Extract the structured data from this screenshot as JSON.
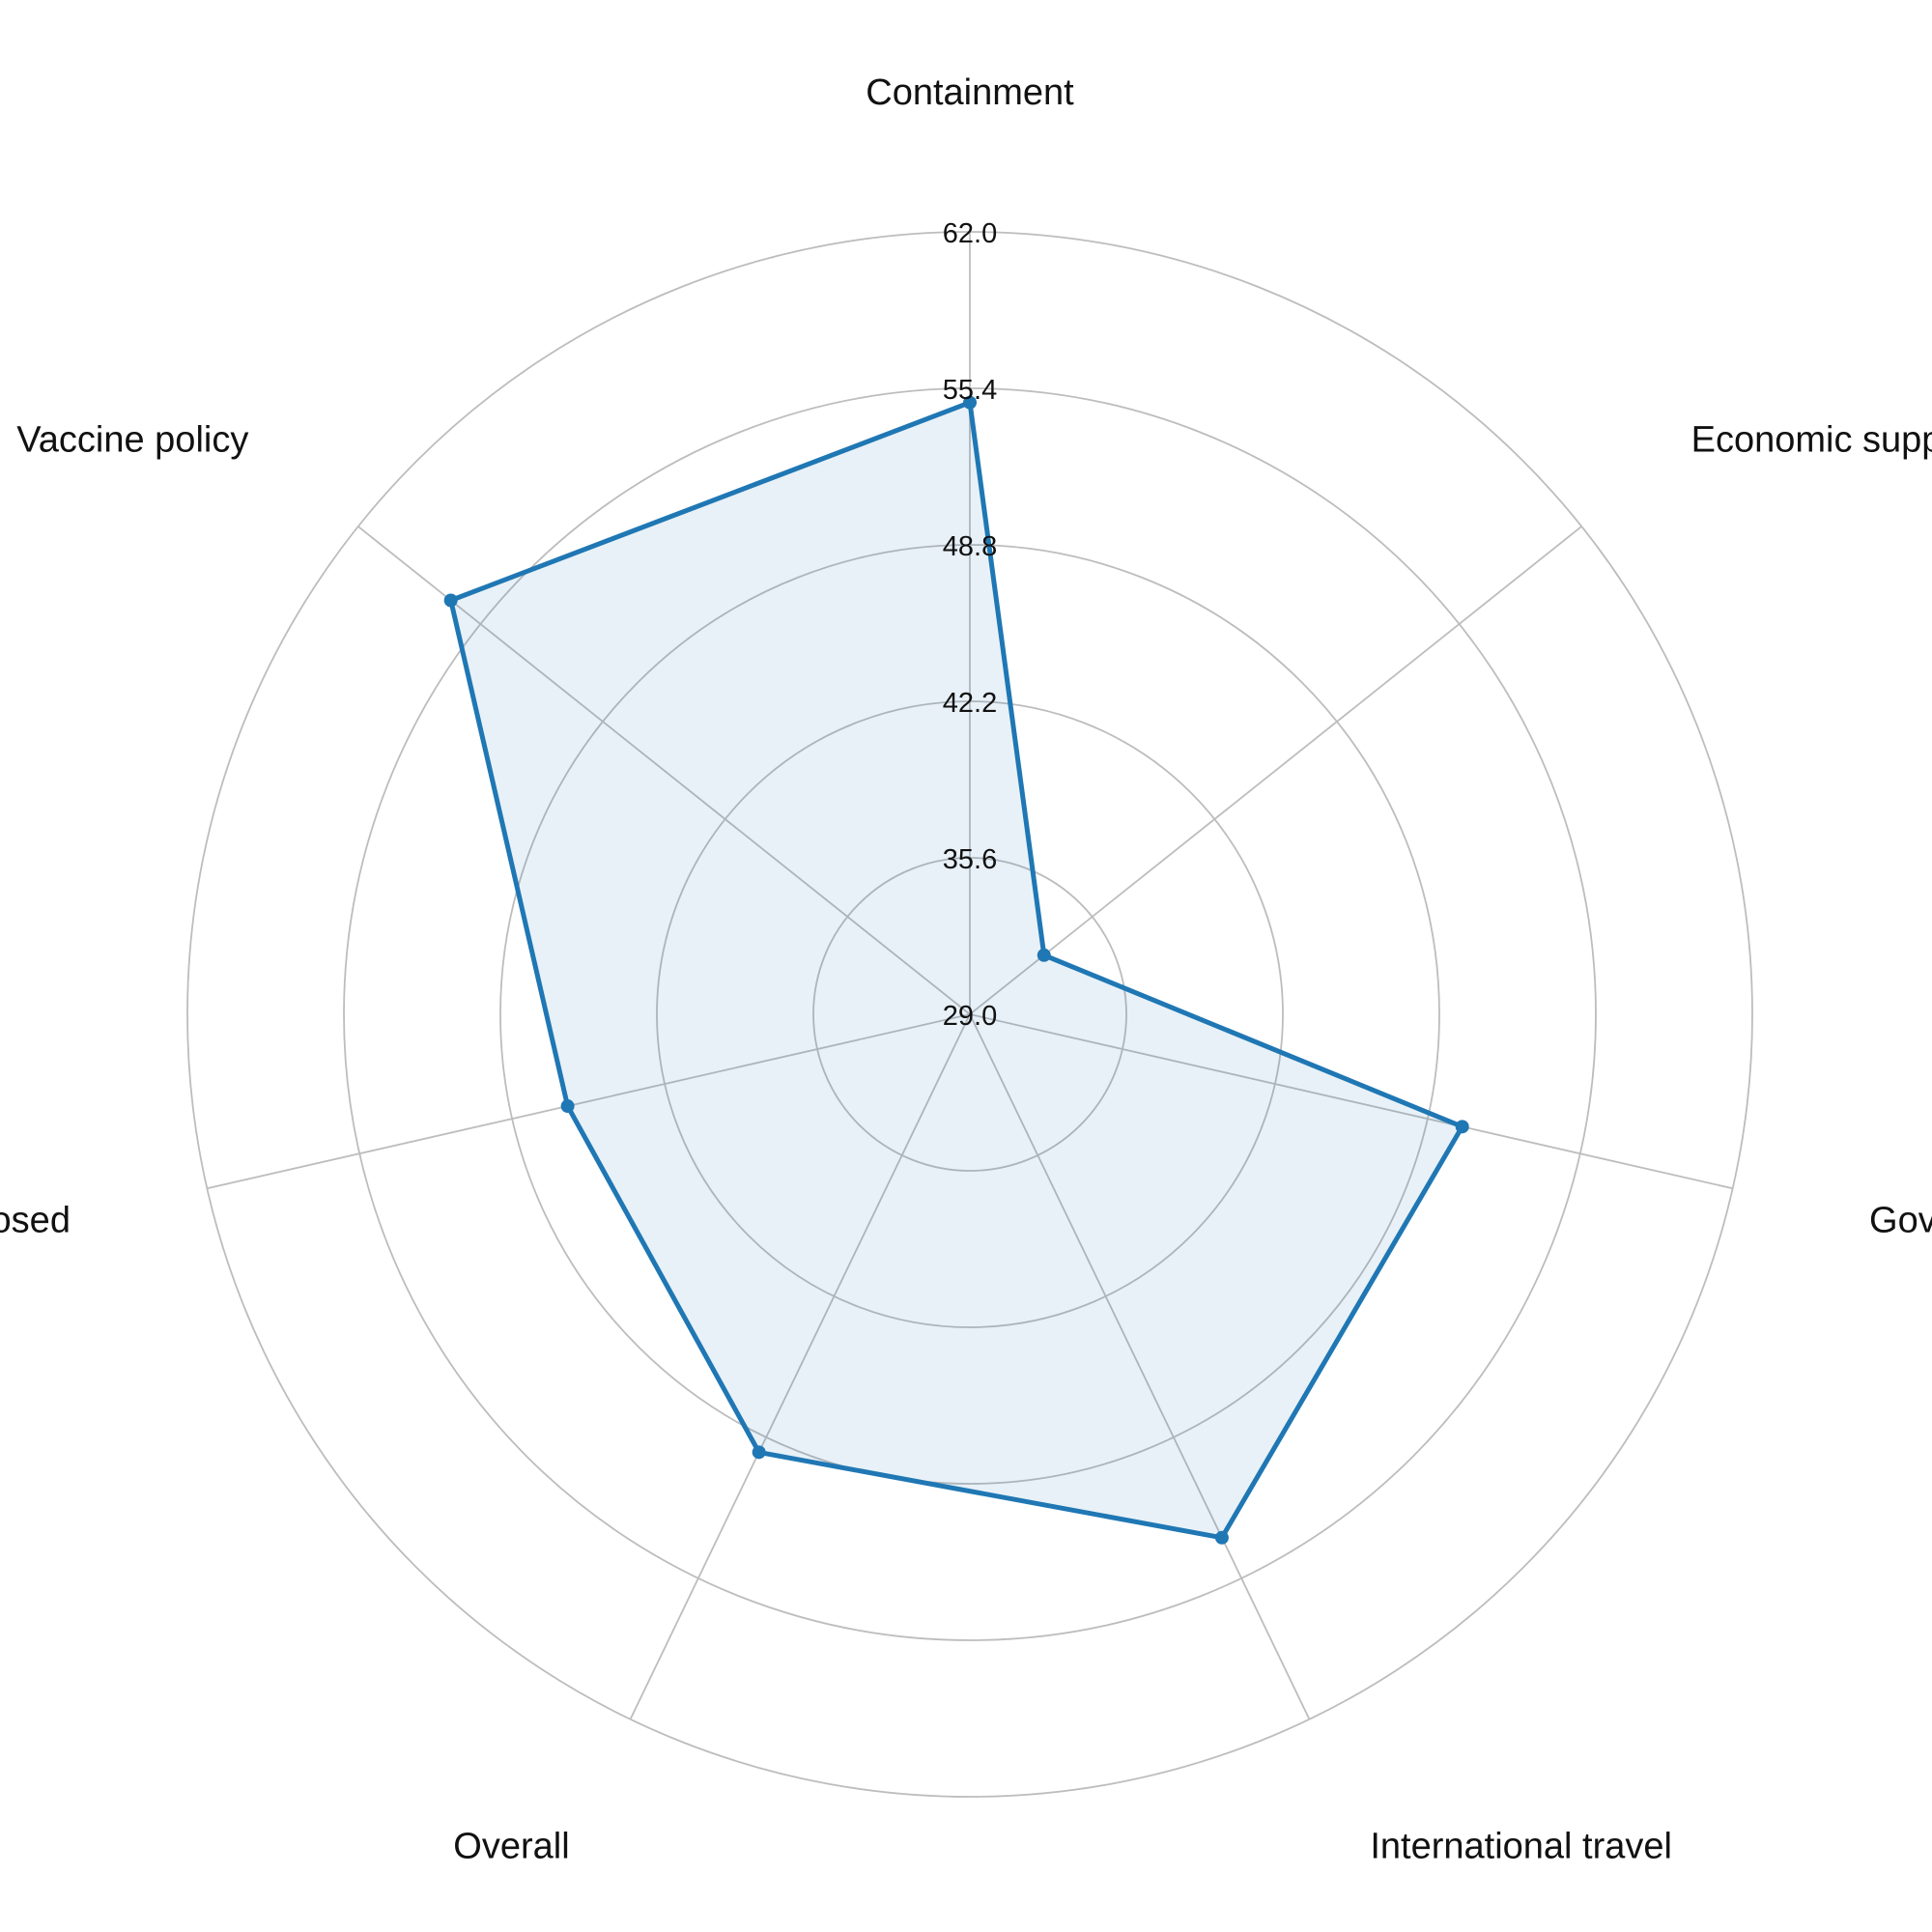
{
  "chart_data": {
    "type": "radar",
    "title": "",
    "axes": [
      "Containment",
      "Economic support",
      "Govt. support",
      "International travel",
      "Overall",
      "Schools closed",
      "Vaccine policy"
    ],
    "tick_labels": [
      "29.0",
      "35.6",
      "42.2",
      "48.8",
      "55.4",
      "62.0"
    ],
    "rlim": [
      29.0,
      62.0
    ],
    "grid": true,
    "series": [
      {
        "values": [
          54.8,
          33.0,
          50.3,
          53.5,
          49.5,
          46.4,
          57.0
        ],
        "color": "#1f77b4",
        "fill_color": "#1f77b4",
        "fill_opacity": 0.1
      }
    ]
  }
}
